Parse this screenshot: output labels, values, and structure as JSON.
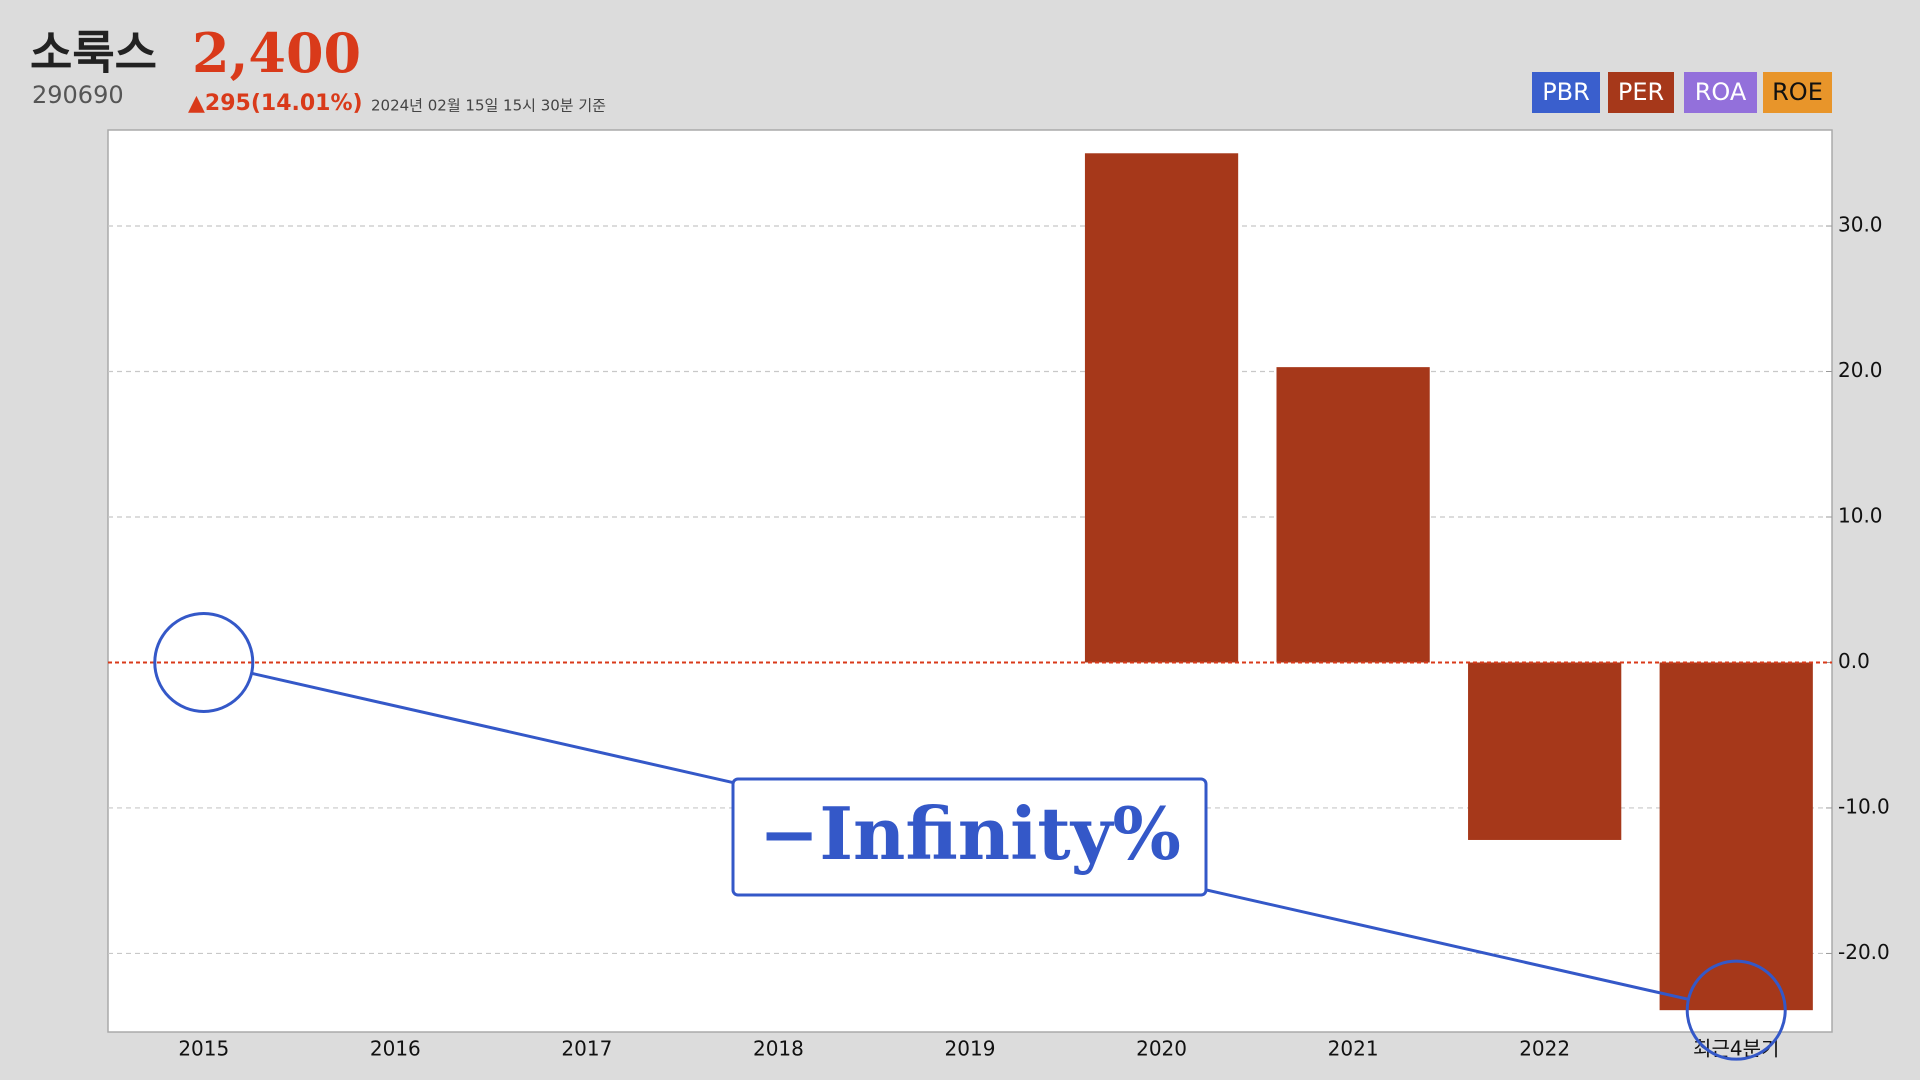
{
  "header": {
    "name": "소룩스",
    "price": "2,400",
    "code": "290690",
    "change": "▲295(14.01%)",
    "timestamp": "2024년 02월 15일 15시 30분 기준"
  },
  "chart_data": {
    "type": "bar",
    "categories": [
      "2015",
      "2016",
      "2017",
      "2018",
      "2019",
      "2020",
      "2021",
      "2022",
      "최근4분기"
    ],
    "series": [
      {
        "name": "PER",
        "color": "#a6381a",
        "values": [
          null,
          null,
          null,
          null,
          null,
          35.0,
          20.3,
          -12.2,
          -23.9
        ]
      }
    ],
    "buttons": [
      {
        "name": "PBR",
        "color": "#3a5fcd"
      },
      {
        "name": "PER",
        "color": "#a6381a"
      },
      {
        "name": "ROA",
        "color": "#9370db"
      },
      {
        "name": "ROE",
        "color": "#e8952a"
      }
    ],
    "ylim": [
      -25.4,
      36.6
    ],
    "yticks": [
      {
        "value": -20,
        "label": "-20.0"
      },
      {
        "value": -10,
        "label": "-10.0"
      },
      {
        "value": 0,
        "label": "0.0"
      },
      {
        "value": 10,
        "label": "10.0"
      },
      {
        "value": 20,
        "label": "20.0"
      },
      {
        "value": 30,
        "label": "30.0"
      }
    ],
    "grid": true,
    "annotation": "−Infinity%"
  }
}
